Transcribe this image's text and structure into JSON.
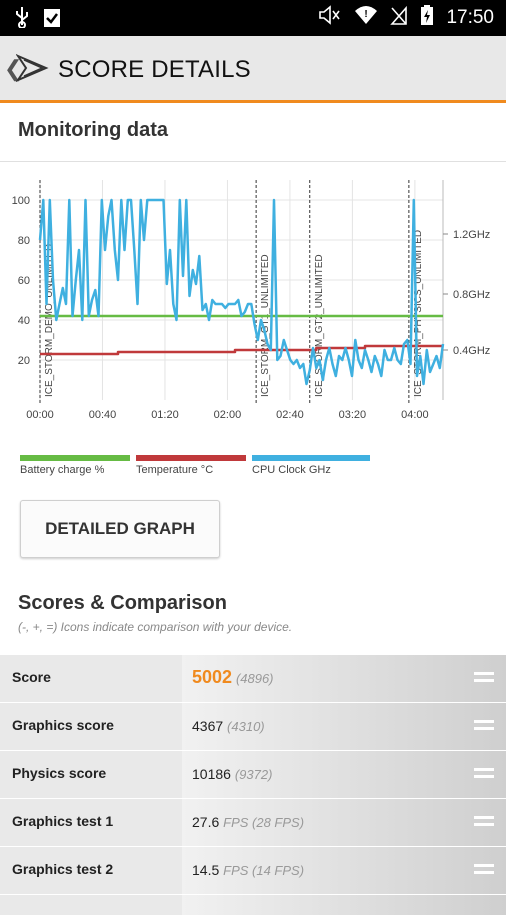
{
  "status_bar": {
    "time": "17:50"
  },
  "header": {
    "title": "SCORE DETAILS"
  },
  "monitoring": {
    "title": "Monitoring data",
    "legend": [
      {
        "label": "Battery charge %",
        "color": "#66bb44"
      },
      {
        "label": "Temperature °C",
        "color": "#c0393b"
      },
      {
        "label": "CPU Clock GHz",
        "color": "#3fb0e0"
      }
    ],
    "detailed_button": "DETAILED GRAPH"
  },
  "chart_data": {
    "type": "line",
    "x_ticks": [
      "00:00",
      "00:40",
      "01:20",
      "02:00",
      "02:40",
      "03:20",
      "04:00"
    ],
    "y_left_ticks": [
      "20",
      "40",
      "60",
      "80",
      "100"
    ],
    "y_right_ticks": [
      "0.4GHz",
      "0.8GHz",
      "1.2GHz"
    ],
    "ylim": [
      0,
      110
    ],
    "markers": [
      {
        "label": "ICE_STORM_DEMO_UNLIMITED",
        "t": 0
      },
      {
        "label": "ICE_STORM_GT1_UNLIMITED",
        "t": 133
      },
      {
        "label": "ICE_STORM_GT2_UNLIMITED",
        "t": 166
      },
      {
        "label": "ICE_STORM_PHYSICS_UNLIMITED",
        "t": 227
      }
    ],
    "series": [
      {
        "name": "Battery charge %",
        "values": [
          [
            0,
            42
          ],
          [
            248,
            42
          ]
        ]
      },
      {
        "name": "Temperature °C",
        "values": [
          [
            0,
            23
          ],
          [
            48,
            23
          ],
          [
            48,
            24
          ],
          [
            120,
            24
          ],
          [
            120,
            25
          ],
          [
            170,
            25
          ],
          [
            170,
            26
          ],
          [
            200,
            26
          ],
          [
            200,
            27
          ],
          [
            248,
            27
          ]
        ]
      },
      {
        "name": "CPU Clock GHz",
        "values": [
          [
            0,
            80
          ],
          [
            2,
            100
          ],
          [
            4,
            48
          ],
          [
            6,
            100
          ],
          [
            8,
            60
          ],
          [
            10,
            40
          ],
          [
            12,
            48
          ],
          [
            14,
            56
          ],
          [
            16,
            48
          ],
          [
            18,
            100
          ],
          [
            20,
            42
          ],
          [
            22,
            60
          ],
          [
            24,
            75
          ],
          [
            26,
            40
          ],
          [
            28,
            100
          ],
          [
            30,
            42
          ],
          [
            32,
            50
          ],
          [
            34,
            55
          ],
          [
            36,
            42
          ],
          [
            38,
            100
          ],
          [
            40,
            75
          ],
          [
            42,
            92
          ],
          [
            44,
            100
          ],
          [
            46,
            75
          ],
          [
            48,
            60
          ],
          [
            50,
            100
          ],
          [
            52,
            75
          ],
          [
            54,
            100
          ],
          [
            56,
            100
          ],
          [
            58,
            75
          ],
          [
            60,
            48
          ],
          [
            62,
            100
          ],
          [
            64,
            80
          ],
          [
            66,
            100
          ],
          [
            68,
            100
          ],
          [
            70,
            100
          ],
          [
            72,
            100
          ],
          [
            74,
            100
          ],
          [
            76,
            100
          ],
          [
            78,
            58
          ],
          [
            80,
            75
          ],
          [
            82,
            48
          ],
          [
            84,
            40
          ],
          [
            86,
            100
          ],
          [
            88,
            62
          ],
          [
            90,
            100
          ],
          [
            92,
            52
          ],
          [
            94,
            65
          ],
          [
            96,
            58
          ],
          [
            98,
            72
          ],
          [
            100,
            45
          ],
          [
            102,
            48
          ],
          [
            104,
            40
          ],
          [
            106,
            50
          ],
          [
            108,
            48
          ],
          [
            110,
            48
          ],
          [
            112,
            48
          ],
          [
            114,
            46
          ],
          [
            116,
            48
          ],
          [
            118,
            48
          ],
          [
            120,
            48
          ],
          [
            122,
            50
          ],
          [
            124,
            42
          ],
          [
            126,
            44
          ],
          [
            128,
            48
          ],
          [
            130,
            48
          ],
          [
            132,
            38
          ],
          [
            134,
            30
          ],
          [
            136,
            40
          ],
          [
            138,
            35
          ],
          [
            140,
            28
          ],
          [
            142,
            25
          ],
          [
            144,
            100
          ],
          [
            146,
            20
          ],
          [
            148,
            22
          ],
          [
            150,
            30
          ],
          [
            152,
            25
          ],
          [
            154,
            20
          ],
          [
            156,
            18
          ],
          [
            158,
            20
          ],
          [
            160,
            16
          ],
          [
            162,
            18
          ],
          [
            164,
            8
          ],
          [
            166,
            15
          ],
          [
            168,
            26
          ],
          [
            170,
            16
          ],
          [
            172,
            20
          ],
          [
            174,
            10
          ],
          [
            176,
            20
          ],
          [
            178,
            26
          ],
          [
            180,
            18
          ],
          [
            182,
            12
          ],
          [
            184,
            22
          ],
          [
            186,
            20
          ],
          [
            188,
            26
          ],
          [
            190,
            20
          ],
          [
            192,
            12
          ],
          [
            194,
            30
          ],
          [
            196,
            20
          ],
          [
            198,
            16
          ],
          [
            200,
            25
          ],
          [
            202,
            20
          ],
          [
            204,
            14
          ],
          [
            206,
            22
          ],
          [
            208,
            18
          ],
          [
            210,
            12
          ],
          [
            212,
            25
          ],
          [
            214,
            20
          ],
          [
            216,
            20
          ],
          [
            218,
            26
          ],
          [
            220,
            20
          ],
          [
            222,
            18
          ],
          [
            224,
            28
          ],
          [
            226,
            30
          ],
          [
            228,
            18
          ],
          [
            230,
            100
          ],
          [
            232,
            12
          ],
          [
            234,
            22
          ],
          [
            236,
            8
          ],
          [
            238,
            25
          ],
          [
            240,
            14
          ],
          [
            242,
            18
          ],
          [
            244,
            22
          ],
          [
            246,
            16
          ],
          [
            248,
            28
          ]
        ]
      }
    ]
  },
  "scores": {
    "title": "Scores & Comparison",
    "subtitle": "(-, +, =) Icons indicate comparison with your device.",
    "rows": [
      {
        "label": "Score",
        "value": "5002",
        "ref": "(4896)"
      },
      {
        "label": "Graphics score",
        "value": "4367",
        "ref": "(4310)"
      },
      {
        "label": "Physics score",
        "value": "10186",
        "ref": "(9372)"
      },
      {
        "label": "Graphics test 1",
        "value": "27.6",
        "ref": "FPS (28 FPS)"
      },
      {
        "label": "Graphics test 2",
        "value": "14.5",
        "ref": "FPS (14 FPS)"
      }
    ]
  }
}
